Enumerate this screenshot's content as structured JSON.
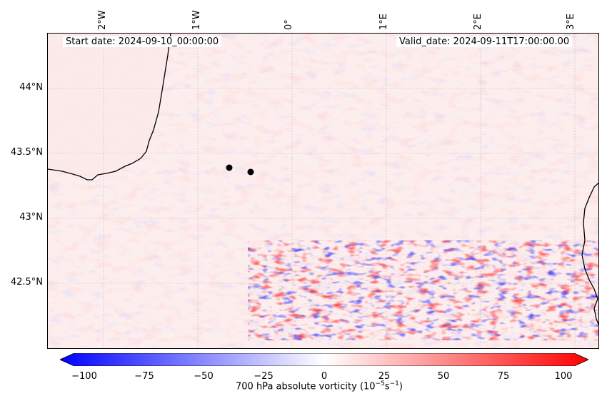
{
  "header": {
    "start_date": "Start date: 2024-09-10_00:00:00",
    "valid_date": "Valid_date: 2024-09-11T17:00:00.00"
  },
  "map": {
    "lon_labels": [
      "2°W",
      "1°W",
      "0°",
      "1°E",
      "2°E",
      "3°E"
    ],
    "lat_labels": [
      "44°N",
      "43.5°N",
      "43°N",
      "42.5°N"
    ],
    "points": 2
  },
  "colorbar": {
    "ticks": [
      "−100",
      "−75",
      "−50",
      "−25",
      "0",
      "25",
      "50",
      "75",
      "100"
    ],
    "label_text": "700 hPa absolute vorticity (10",
    "label_exp": "−5",
    "label_mid": "s",
    "label_exp2": "−1",
    "label_end": ")",
    "colors": {
      "low": "#0000ff",
      "mid": "#ffffff",
      "high": "#ff0000"
    }
  }
}
